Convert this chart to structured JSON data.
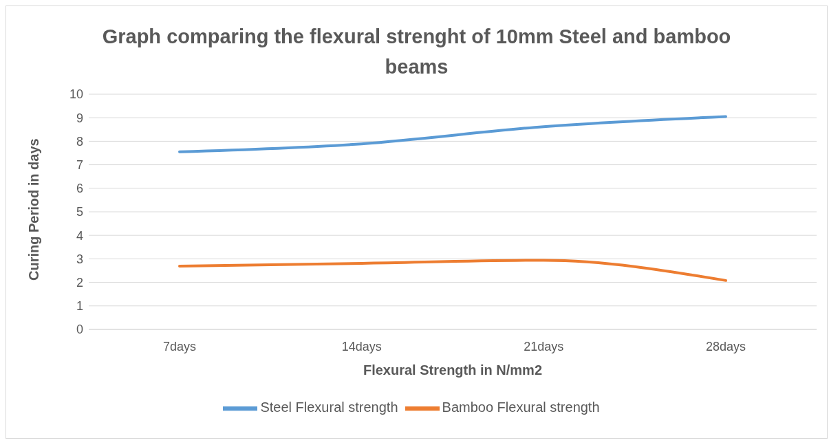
{
  "chart_data": {
    "type": "line",
    "title": "Graph comparing the flexural strenght of 10mm Steel and bamboo beams",
    "xlabel": "Flexural Strength in N/mm2",
    "ylabel": "Curing Period in days",
    "categories": [
      "7days",
      "14days",
      "21days",
      "28days"
    ],
    "series": [
      {
        "name": "Steel Flexural strength",
        "color": "#5b9bd5",
        "values": [
          7.55,
          7.89,
          8.62,
          9.05
        ]
      },
      {
        "name": "Bamboo Flexural strength",
        "color": "#ed7d31",
        "values": [
          2.69,
          2.81,
          2.94,
          2.08
        ]
      }
    ],
    "ylim": [
      0,
      10
    ],
    "yticks": [
      0,
      1,
      2,
      3,
      4,
      5,
      6,
      7,
      8,
      9,
      10
    ],
    "grid": "y",
    "legend": "bottom"
  }
}
